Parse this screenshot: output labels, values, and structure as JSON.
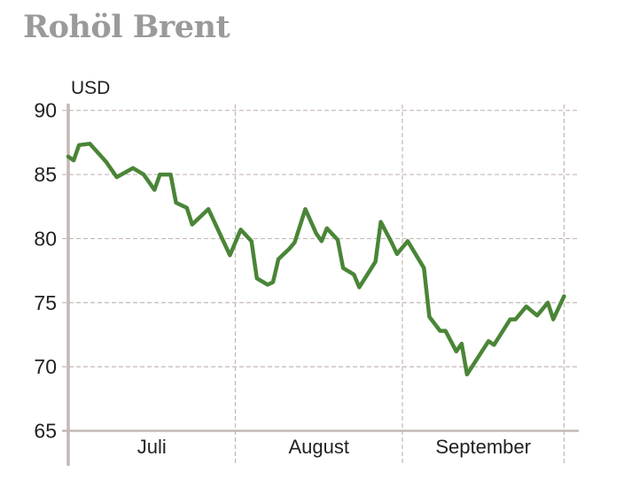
{
  "chart_data": {
    "type": "line",
    "title": "Rohöl Brent",
    "ylabel": "USD",
    "xlabel": "",
    "ylim": [
      65,
      90
    ],
    "yticks": [
      65,
      70,
      75,
      80,
      85,
      90
    ],
    "grid": true,
    "months": [
      {
        "label": "Juli",
        "start": "07-01",
        "end": "08-01"
      },
      {
        "label": "August",
        "start": "08-01",
        "end": "09-01"
      },
      {
        "label": "September",
        "start": "09-01",
        "end": "10-01"
      }
    ],
    "line_color": "#4a8537",
    "series": [
      {
        "x": [
          "07-01",
          "07-02",
          "07-03",
          "07-05",
          "07-08",
          "07-10",
          "07-13",
          "07-15",
          "07-17",
          "07-18",
          "07-20",
          "07-21",
          "07-23",
          "07-24",
          "07-27",
          "07-31",
          "08-02",
          "08-04",
          "08-05",
          "08-07",
          "08-08",
          "08-09",
          "08-11",
          "08-12",
          "08-14",
          "08-16",
          "08-17",
          "08-18",
          "08-20",
          "08-21",
          "08-23",
          "08-24",
          "08-27",
          "08-28",
          "08-30",
          "08-31",
          "09-02",
          "09-05",
          "09-06",
          "09-08",
          "09-09",
          "09-11",
          "09-12",
          "09-13",
          "09-17",
          "09-18",
          "09-21",
          "09-22",
          "09-24",
          "09-26",
          "09-28",
          "09-29",
          "10-01"
        ],
        "values": [
          86.4,
          86.1,
          87.3,
          87.4,
          86.0,
          84.8,
          85.5,
          85.0,
          83.8,
          85.0,
          85.0,
          82.8,
          82.4,
          81.1,
          82.3,
          78.7,
          80.7,
          79.8,
          76.9,
          76.4,
          76.6,
          78.4,
          79.2,
          79.7,
          82.3,
          80.4,
          79.8,
          80.8,
          79.9,
          77.7,
          77.2,
          76.2,
          78.2,
          81.3,
          79.7,
          78.8,
          79.8,
          77.7,
          73.9,
          72.8,
          72.8,
          71.2,
          71.8,
          69.4,
          72.0,
          71.7,
          73.7,
          73.7,
          74.7,
          74.0,
          75.0,
          73.7,
          75.5
        ]
      }
    ]
  }
}
